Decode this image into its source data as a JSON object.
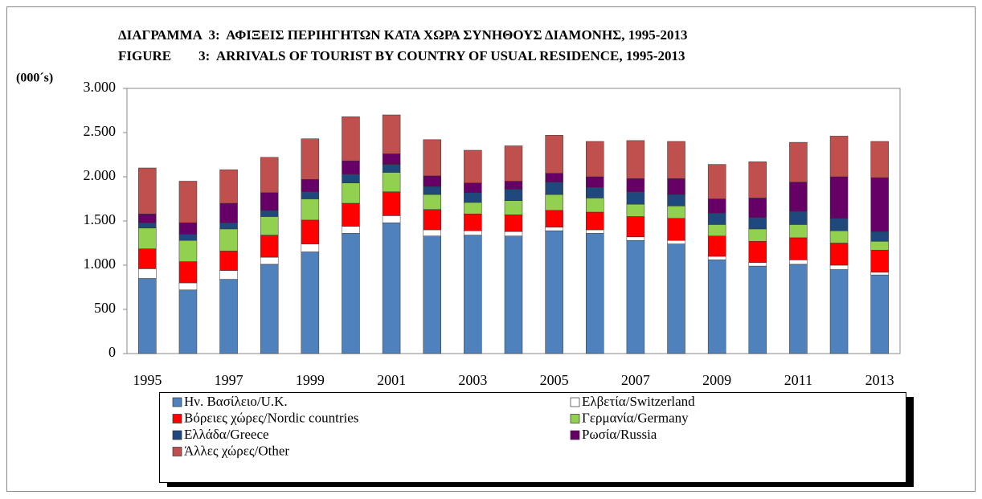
{
  "chart_data": {
    "type": "stacked_bar",
    "title": [
      "ΔΙΑΓΡΑΜΜΑ  3:  ΑΦΙΞΕΙΣ ΠΕΡΙΗΓΗΤΩΝ ΚΑΤΑ ΧΩΡΑ ΣΥΝΗΘΟΥΣ ΔΙΑΜΟΝΗΣ, 1995-2013",
      "FIGURE        3:  ARRIVALS OF TOURIST BY COUNTRY OF USUAL RESIDENCE, 1995-2013"
    ],
    "y_axis_label": "(000´s)",
    "categories": [
      "1995",
      null,
      "1997",
      null,
      "1999",
      null,
      "2001",
      null,
      "2003",
      null,
      "2005",
      null,
      "2007",
      null,
      "2009",
      null,
      "2011",
      null,
      "2013"
    ],
    "series": [
      {
        "name": "Ην. Βασίλειο/U.K.",
        "color": "#4f81bd",
        "values": [
          850,
          720,
          840,
          1010,
          1150,
          1360,
          1480,
          1330,
          1340,
          1330,
          1390,
          1360,
          1280,
          1240,
          1060,
          990,
          1010,
          950,
          890
        ]
      },
      {
        "name": "Ελβετία/Switzerland",
        "color": "#ffffff",
        "values": [
          110,
          80,
          100,
          80,
          90,
          80,
          80,
          70,
          50,
          50,
          40,
          40,
          40,
          40,
          40,
          40,
          50,
          50,
          30
        ]
      },
      {
        "name": "Βόρειες χώρες/Nordic countries",
        "color": "#ff0000",
        "values": [
          225,
          240,
          220,
          250,
          270,
          260,
          270,
          230,
          190,
          190,
          190,
          200,
          230,
          250,
          230,
          240,
          250,
          250,
          250
        ]
      },
      {
        "name": "Γερμανία/Germany",
        "color": "#92d050",
        "values": [
          235,
          240,
          250,
          210,
          240,
          230,
          220,
          170,
          130,
          160,
          180,
          160,
          140,
          140,
          130,
          140,
          150,
          140,
          100
        ]
      },
      {
        "name": "Ελλάδα/Greece",
        "color": "#1f497d",
        "values": [
          60,
          70,
          70,
          70,
          80,
          100,
          90,
          90,
          110,
          130,
          140,
          120,
          140,
          130,
          130,
          130,
          150,
          140,
          110
        ]
      },
      {
        "name": "Ρωσία/Russia",
        "color": "#660066",
        "values": [
          100,
          130,
          220,
          200,
          140,
          150,
          120,
          120,
          110,
          90,
          100,
          120,
          150,
          180,
          160,
          220,
          330,
          470,
          610
        ]
      },
      {
        "name": "Άλλες χώρες/Other",
        "color": "#c0504d",
        "values": [
          520,
          470,
          380,
          400,
          460,
          500,
          440,
          410,
          370,
          400,
          430,
          400,
          430,
          420,
          390,
          410,
          450,
          460,
          410
        ]
      }
    ],
    "ylim": [
      0,
      3000
    ],
    "yticks": [
      0,
      500,
      {
        "value": 1000,
        "label": "1.000"
      },
      {
        "value": 1500,
        "label": "1.500"
      },
      {
        "value": 2000,
        "label": "2.000"
      },
      {
        "value": 2500,
        "label": "2.500"
      },
      {
        "value": 3000,
        "label": "3.000"
      }
    ],
    "legend": "bottom"
  }
}
